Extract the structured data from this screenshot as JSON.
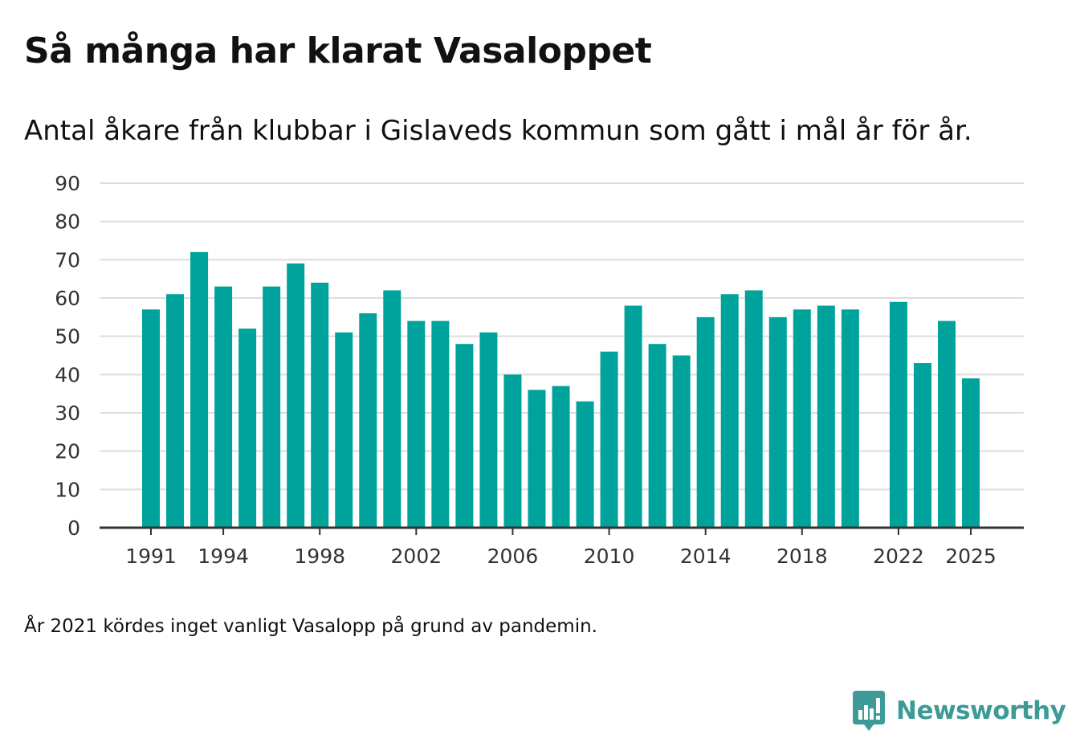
{
  "header": {
    "title": "Så många har klarat Vasaloppet",
    "subtitle": "Antal åkare från klubbar i Gislaveds kommun som gått i mål år för år."
  },
  "footnote": "År 2021 kördes inget vanligt Vasalopp på grund av pandemin.",
  "brand": {
    "name": "Newsworthy",
    "logo_icon": "bar-chart-badge-icon",
    "color": "#3d9a96"
  },
  "colors": {
    "bar": "#00a39b",
    "grid": "#dddddd",
    "axis": "#333333"
  },
  "chart_data": {
    "type": "bar",
    "title": "Så många har klarat Vasaloppet",
    "xlabel": "",
    "ylabel": "",
    "ylim": [
      0,
      90
    ],
    "yticks": [
      0,
      10,
      20,
      30,
      40,
      50,
      60,
      70,
      80,
      90
    ],
    "xtick_labels": [
      1991,
      1994,
      1998,
      2002,
      2006,
      2010,
      2014,
      2018,
      2022,
      2025
    ],
    "grid": true,
    "categories": [
      1991,
      1992,
      1993,
      1994,
      1995,
      1996,
      1997,
      1998,
      1999,
      2000,
      2001,
      2002,
      2003,
      2004,
      2005,
      2006,
      2007,
      2008,
      2009,
      2010,
      2011,
      2012,
      2013,
      2014,
      2015,
      2016,
      2017,
      2018,
      2019,
      2020,
      2021,
      2022,
      2023,
      2024,
      2025
    ],
    "values": [
      57,
      61,
      72,
      63,
      52,
      63,
      69,
      64,
      51,
      56,
      62,
      54,
      54,
      48,
      51,
      40,
      36,
      37,
      33,
      46,
      58,
      48,
      45,
      55,
      61,
      62,
      55,
      57,
      58,
      57,
      null,
      59,
      43,
      54,
      39
    ]
  }
}
